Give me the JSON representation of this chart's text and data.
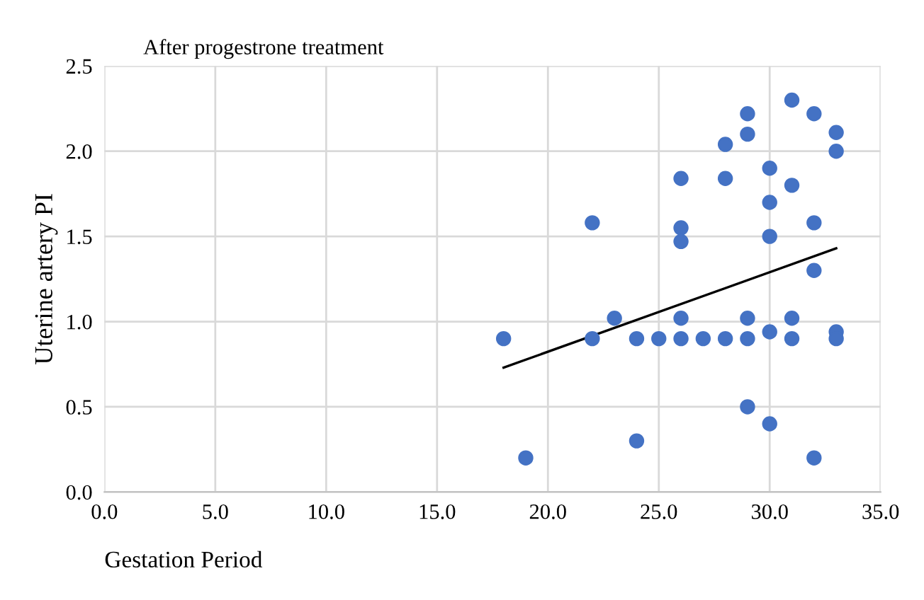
{
  "chart_data": {
    "type": "scatter",
    "title": "After progestrone treatment",
    "xlabel": "Gestation Period",
    "ylabel": "Uterine artery PI",
    "xlim": [
      0,
      35
    ],
    "xticks": [
      {
        "value": 0,
        "label": "0.0"
      },
      {
        "value": 5,
        "label": "5.0"
      },
      {
        "value": 10,
        "label": "10.0"
      },
      {
        "value": 15,
        "label": "15.0"
      },
      {
        "value": 20,
        "label": "20.0"
      },
      {
        "value": 25,
        "label": "25.0"
      },
      {
        "value": 30,
        "label": "30.0"
      },
      {
        "value": 35,
        "label": "35.0"
      }
    ],
    "ylim": [
      0,
      2.5
    ],
    "yticks": [
      {
        "value": 0,
        "label": "0.0"
      },
      {
        "value": 0.5,
        "label": "0.5"
      },
      {
        "value": 1,
        "label": "1.0"
      },
      {
        "value": 1.5,
        "label": "1.5"
      },
      {
        "value": 2,
        "label": "2.0"
      },
      {
        "value": 2.5,
        "label": "2.5"
      }
    ],
    "grid": true,
    "series": [
      {
        "marker": "circle",
        "color": "#4472c4",
        "x": [
          18,
          19,
          22,
          22,
          23,
          24,
          24,
          25,
          26,
          26,
          26,
          26,
          26,
          27,
          28,
          28,
          28,
          29,
          29,
          29,
          29,
          29,
          30,
          30,
          30,
          30,
          30,
          31,
          31,
          31,
          31,
          32,
          32,
          32,
          32,
          33,
          33,
          33,
          33
        ],
        "values": [
          0.9,
          0.2,
          1.58,
          0.9,
          1.02,
          0.9,
          0.3,
          0.9,
          1.84,
          1.55,
          1.47,
          1.02,
          0.9,
          0.9,
          2.04,
          1.84,
          0.9,
          2.22,
          2.1,
          1.02,
          0.9,
          0.5,
          1.9,
          1.7,
          1.5,
          0.94,
          0.4,
          2.3,
          1.8,
          1.02,
          0.9,
          2.22,
          1.58,
          1.3,
          0.2,
          2.11,
          2.0,
          0.94,
          0.9
        ]
      },
      {
        "type": "line",
        "marker": "none",
        "color": "#000000",
        "x": [
          18,
          33
        ],
        "values": [
          0.73,
          1.43
        ]
      }
    ]
  }
}
